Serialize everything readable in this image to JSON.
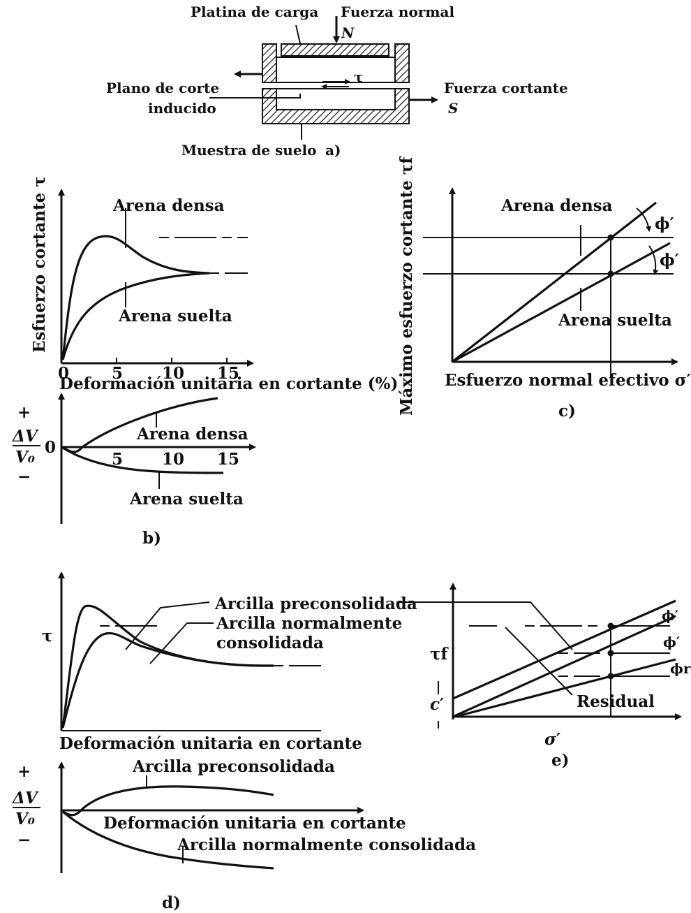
{
  "colors": {
    "ink": "#111111",
    "background": "#ffffff",
    "hatch": "#222222"
  },
  "panel_a": {
    "label": "a)",
    "loading_plate": "Platina de carga",
    "normal_force": "Fuerza normal",
    "normal_symbol": "N",
    "shear_plane_1": "Plano de corte",
    "shear_plane_2": "inducido",
    "shear_force": "Fuerza cortante",
    "shear_symbol": "S",
    "tau_symbol": "τ",
    "soil_sample": "Muestra de suelo"
  },
  "panel_b": {
    "label": "b)",
    "ylabel": "Esfuerzo cortante τ",
    "xlabel": "Deformación unitaria en cortante (%)",
    "dense": "Arena densa",
    "loose": "Arena suelta",
    "xticks": [
      "0",
      "5",
      "10",
      "15"
    ],
    "dv_ticks": [
      "5",
      "10",
      "15"
    ],
    "dv_plus": "+",
    "dv_minus": "−",
    "dv_zero": "0",
    "dv_num": "ΔV",
    "dv_den": "V₀",
    "dv_dense": "Arena densa",
    "dv_loose": "Arena suelta"
  },
  "panel_c1": {
    "label": "c)",
    "ylabel": "Máximo esfuerzo cortante τf",
    "xlabel": "Esfuerzo normal efectivo σ′",
    "dense": "Arena densa",
    "loose": "Arena suelta",
    "phi": "ϕ′"
  },
  "panel_d": {
    "label": "d)",
    "tau": "τ",
    "xlabel": "Deformación unitaria en cortante",
    "overconsolidated": "Arcilla preconsolidada",
    "normally_1": "Arcilla normalmente",
    "normally_2": "consolidada",
    "dv_plus": "+",
    "dv_minus": "−",
    "dv_num": "ΔV",
    "dv_den": "V₀",
    "dv_xlabel": "Deformación unitaria en cortante",
    "dv_over": "Arcilla preconsolidada",
    "dv_normal": "Arcilla normalmente consolidada"
  },
  "panel_e": {
    "label": "e)",
    "tau_f": "τf",
    "c": "c′",
    "sigma": "σ′",
    "phi1": "ϕ′",
    "phi2": "ϕ′",
    "phir": "ϕr′",
    "residual": "Residual"
  }
}
